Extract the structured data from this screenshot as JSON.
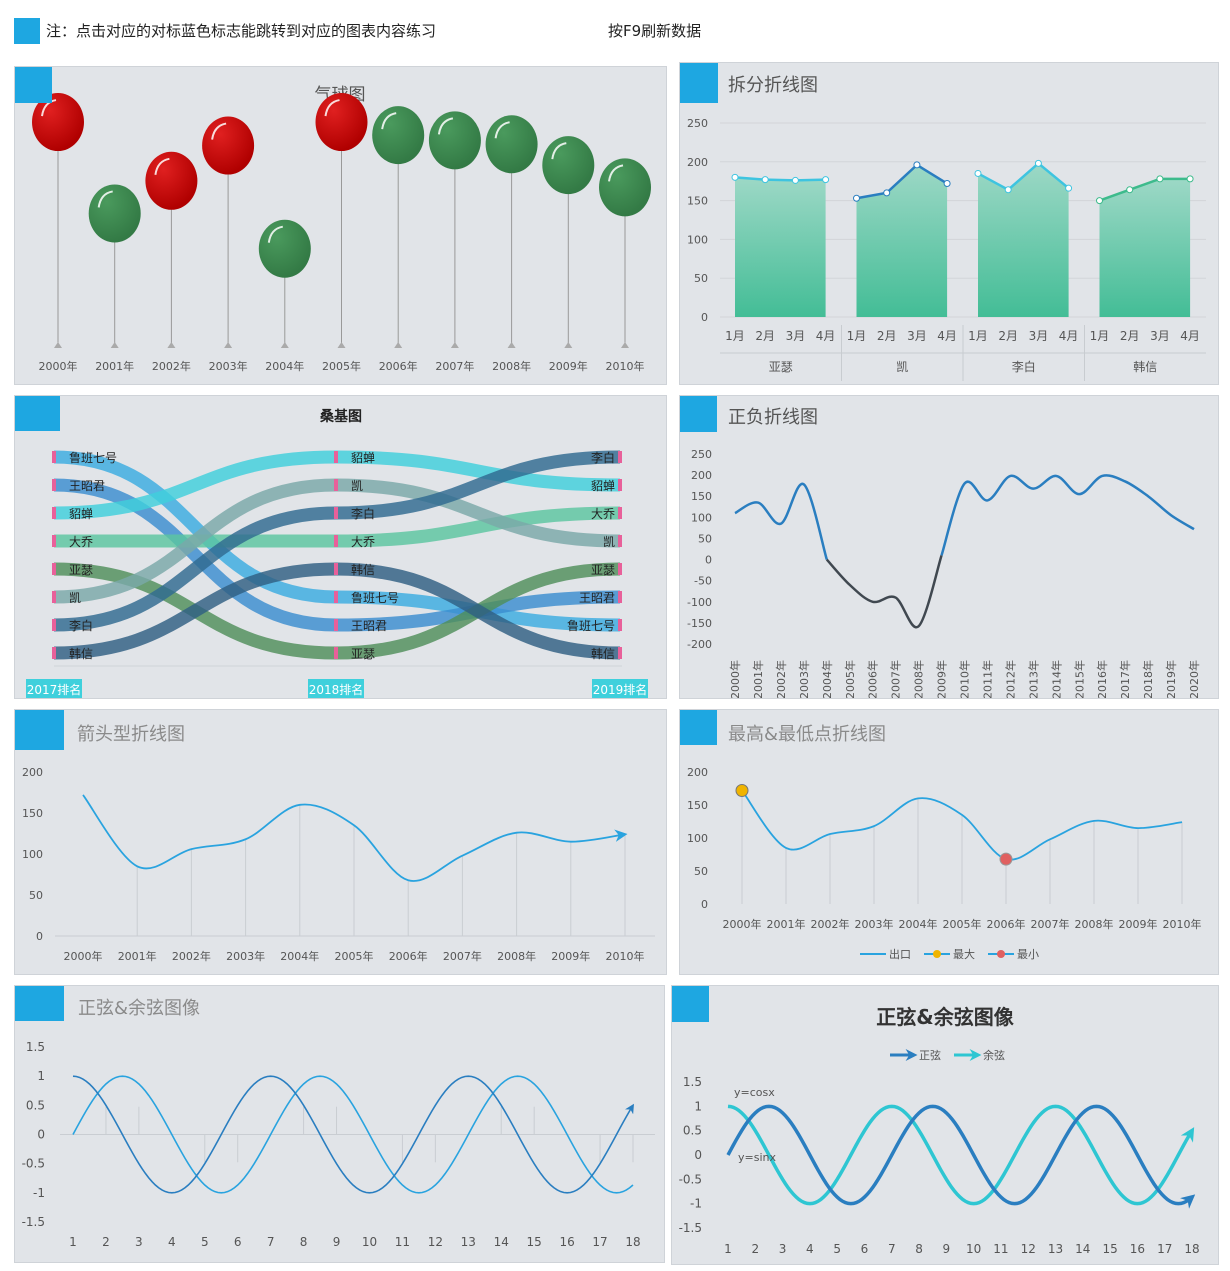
{
  "header": {
    "note": "注：点击对应的对标蓝色标志能跳转到对应的图表内容练习",
    "refresh": "按F9刷新数据"
  },
  "colors": {
    "accent": "#1ea7e1",
    "red": "#c00000",
    "green": "#3d8a50",
    "teal": "#4cbf99"
  },
  "chart_data": [
    {
      "id": "balloon",
      "type": "scatter",
      "title": "气球图",
      "categories": [
        "2000年",
        "2001年",
        "2002年",
        "2003年",
        "2004年",
        "2005年",
        "2006年",
        "2007年",
        "2008年",
        "2009年",
        "2010年"
      ],
      "values": [
        170,
        100,
        125,
        152,
        73,
        170,
        160,
        156,
        153,
        137,
        120
      ],
      "colors": [
        "red",
        "green",
        "red",
        "red",
        "green",
        "red",
        "green",
        "green",
        "green",
        "green",
        "green"
      ]
    },
    {
      "id": "split",
      "type": "area",
      "title": "拆分折线图",
      "ylim": [
        0,
        250
      ],
      "yticks": [
        "250",
        "200",
        "150",
        "100",
        "50",
        "0"
      ],
      "months": [
        "1月",
        "2月",
        "3月",
        "4月"
      ],
      "groups": [
        {
          "name": "亚瑟",
          "values": [
            180,
            177,
            176,
            177
          ]
        },
        {
          "name": "凯",
          "values": [
            153,
            160,
            196,
            172
          ]
        },
        {
          "name": "李白",
          "values": [
            185,
            164,
            198,
            166
          ]
        },
        {
          "name": "韩信",
          "values": [
            150,
            164,
            178,
            178
          ]
        }
      ]
    },
    {
      "id": "sankey",
      "type": "line",
      "title": "桑基图",
      "stages": [
        "2017排名",
        "2018排名",
        "2019排名"
      ],
      "rank_2017": [
        "鲁班七号",
        "王昭君",
        "貂蝉",
        "大乔",
        "亚瑟",
        "凯",
        "李白",
        "韩信"
      ],
      "rank_2018": [
        "貂蝉",
        "凯",
        "李白",
        "大乔",
        "韩信",
        "鲁班七号",
        "王昭君",
        "亚瑟"
      ],
      "rank_2019": [
        "李白",
        "貂蝉",
        "大乔",
        "凯",
        "亚瑟",
        "王昭君",
        "鲁班七号",
        "韩信"
      ]
    },
    {
      "id": "posneg",
      "type": "line",
      "title": "正负折线图",
      "ylim": [
        -200,
        250
      ],
      "yticks": [
        "250",
        "200",
        "150",
        "100",
        "50",
        "0",
        "-50",
        "-100",
        "-150",
        "-200"
      ],
      "x": [
        "2000年",
        "2001年",
        "2002年",
        "2003年",
        "2004年",
        "2005年",
        "2006年",
        "2007年",
        "2008年",
        "2009年",
        "2010年",
        "2011年",
        "2012年",
        "2013年",
        "2014年",
        "2015年",
        "2016年",
        "2017年",
        "2018年",
        "2019年",
        "2020年"
      ],
      "values": [
        110,
        135,
        85,
        178,
        0,
        -60,
        -100,
        -90,
        -158,
        10,
        180,
        140,
        198,
        168,
        198,
        155,
        198,
        185,
        150,
        105,
        72
      ]
    },
    {
      "id": "arrow",
      "type": "line",
      "title": "箭头型折线图",
      "ylim": [
        0,
        200
      ],
      "yticks": [
        "200",
        "150",
        "100",
        "50",
        "0"
      ],
      "x": [
        "2000年",
        "2001年",
        "2002年",
        "2003年",
        "2004年",
        "2005年",
        "2006年",
        "2007年",
        "2008年",
        "2009年",
        "2010年"
      ],
      "values": [
        172,
        85,
        106,
        118,
        160,
        135,
        68,
        98,
        126,
        115,
        124
      ]
    },
    {
      "id": "maxmin",
      "type": "line",
      "title": "最高&最低点折线图",
      "ylim": [
        0,
        200
      ],
      "yticks": [
        "200",
        "150",
        "100",
        "50",
        "0"
      ],
      "x": [
        "2000年",
        "2001年",
        "2002年",
        "2003年",
        "2004年",
        "2005年",
        "2006年",
        "2007年",
        "2008年",
        "2009年",
        "2010年"
      ],
      "values": [
        172,
        85,
        106,
        118,
        160,
        135,
        68,
        98,
        126,
        115,
        124
      ],
      "legend": [
        "出口",
        "最大",
        "最小"
      ]
    },
    {
      "id": "sincos1",
      "type": "line",
      "title": "正弦&余弦图像",
      "ylim": [
        -1.5,
        1.5
      ],
      "yticks": [
        "1.5",
        "1",
        "0.5",
        "0",
        "-0.5",
        "-1",
        "-1.5"
      ],
      "x": [
        "1",
        "2",
        "3",
        "4",
        "5",
        "6",
        "7",
        "8",
        "9",
        "10",
        "11",
        "12",
        "13",
        "14",
        "15",
        "16",
        "17",
        "18"
      ]
    },
    {
      "id": "sincos2",
      "type": "line",
      "title": "正弦&余弦图像",
      "ylim": [
        -1.5,
        1.5
      ],
      "yticks": [
        "1.5",
        "1",
        "0.5",
        "0",
        "-0.5",
        "-1",
        "-1.5"
      ],
      "x": [
        "1",
        "2",
        "3",
        "4",
        "5",
        "6",
        "7",
        "8",
        "9",
        "10",
        "11",
        "12",
        "13",
        "14",
        "15",
        "16",
        "17",
        "18"
      ],
      "legend": [
        "正弦",
        "余弦"
      ],
      "annotations": [
        "y=cosx",
        "y=sinx"
      ]
    }
  ]
}
